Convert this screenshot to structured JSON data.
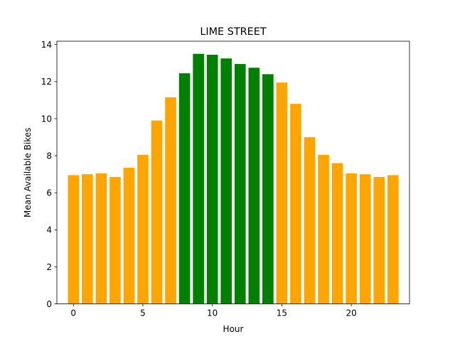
{
  "chart_data": {
    "type": "bar",
    "title": "LIME STREET",
    "xlabel": "Hour",
    "ylabel": "Mean Available Bikes",
    "x": [
      0,
      1,
      2,
      3,
      4,
      5,
      6,
      7,
      8,
      9,
      10,
      11,
      12,
      13,
      14,
      15,
      16,
      17,
      18,
      19,
      20,
      21,
      22,
      23
    ],
    "values": [
      6.95,
      7.0,
      7.05,
      6.85,
      7.35,
      8.05,
      9.9,
      11.15,
      12.45,
      13.5,
      13.45,
      13.25,
      12.95,
      12.75,
      12.4,
      11.95,
      10.8,
      9.0,
      8.05,
      7.6,
      7.05,
      7.0,
      6.85,
      6.95
    ],
    "bar_colors": [
      "#ffa500",
      "#ffa500",
      "#ffa500",
      "#ffa500",
      "#ffa500",
      "#ffa500",
      "#ffa500",
      "#ffa500",
      "#008000",
      "#008000",
      "#008000",
      "#008000",
      "#008000",
      "#008000",
      "#008000",
      "#ffa500",
      "#ffa500",
      "#ffa500",
      "#ffa500",
      "#ffa500",
      "#ffa500",
      "#ffa500",
      "#ffa500",
      "#ffa500"
    ],
    "xlim": [
      -1.19,
      24.19
    ],
    "ylim": [
      0,
      14.18
    ],
    "xticks": [
      0,
      5,
      10,
      15,
      20
    ],
    "yticks": [
      0,
      2,
      4,
      6,
      8,
      10,
      12,
      14
    ],
    "grid": false,
    "legend": "none"
  }
}
